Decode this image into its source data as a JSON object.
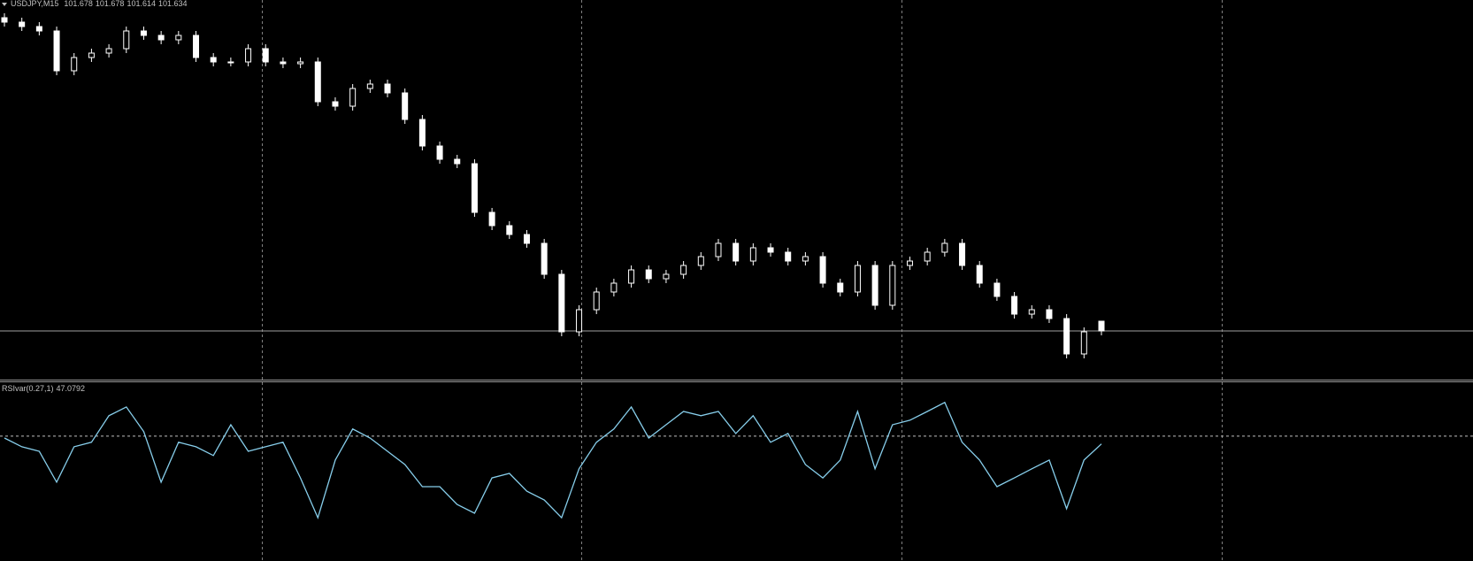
{
  "chart_data": [
    {
      "type": "candlestick",
      "title": "USDJPY,M15",
      "open": [
        103.05,
        103.03,
        103.01,
        102.99,
        102.81,
        102.87,
        102.89,
        102.91,
        102.99,
        102.97,
        102.95,
        102.97,
        102.87,
        102.85,
        102.85,
        102.91,
        102.85,
        102.842,
        102.85,
        102.67,
        102.65,
        102.73,
        102.75,
        102.71,
        102.59,
        102.47,
        102.41,
        102.39,
        102.17,
        102.11,
        102.07,
        102.03,
        101.89,
        101.63,
        101.73,
        101.81,
        101.85,
        101.91,
        101.87,
        101.89,
        101.93,
        101.97,
        102.03,
        101.95,
        102.01,
        101.99,
        101.95,
        101.97,
        101.85,
        101.81,
        101.93,
        101.75,
        101.93,
        101.95,
        101.99,
        102.03,
        101.93,
        101.85,
        101.79,
        101.71,
        101.73,
        101.69,
        101.53,
        101.678
      ],
      "high": [
        103.07,
        103.05,
        103.03,
        103.01,
        102.89,
        102.91,
        102.93,
        103.01,
        103.01,
        102.99,
        102.99,
        102.99,
        102.89,
        102.87,
        102.93,
        102.93,
        102.87,
        102.87,
        102.87,
        102.69,
        102.75,
        102.77,
        102.77,
        102.73,
        102.61,
        102.49,
        102.43,
        102.41,
        102.19,
        102.13,
        102.09,
        102.05,
        101.91,
        101.75,
        101.83,
        101.87,
        101.93,
        101.93,
        101.91,
        101.95,
        101.99,
        102.05,
        102.05,
        102.03,
        102.03,
        102.01,
        101.99,
        101.99,
        101.87,
        101.95,
        101.95,
        101.95,
        101.97,
        102.01,
        102.05,
        102.05,
        101.95,
        101.87,
        101.81,
        101.75,
        101.75,
        101.71,
        101.65,
        101.678
      ],
      "low": [
        103.01,
        102.99,
        102.97,
        102.79,
        102.79,
        102.85,
        102.87,
        102.89,
        102.95,
        102.93,
        102.93,
        102.85,
        102.83,
        102.83,
        102.83,
        102.83,
        102.822,
        102.822,
        102.65,
        102.63,
        102.63,
        102.71,
        102.69,
        102.57,
        102.45,
        102.39,
        102.37,
        102.15,
        102.09,
        102.05,
        102.01,
        101.87,
        101.61,
        101.61,
        101.71,
        101.79,
        101.83,
        101.85,
        101.85,
        101.87,
        101.91,
        101.95,
        101.93,
        101.93,
        101.97,
        101.93,
        101.93,
        101.83,
        101.79,
        101.79,
        101.73,
        101.73,
        101.91,
        101.93,
        101.97,
        101.91,
        101.83,
        101.77,
        101.69,
        101.69,
        101.67,
        101.51,
        101.51,
        101.614
      ],
      "close": [
        103.03,
        103.01,
        102.99,
        102.81,
        102.87,
        102.89,
        102.91,
        102.99,
        102.97,
        102.95,
        102.97,
        102.87,
        102.85,
        102.85,
        102.91,
        102.85,
        102.842,
        102.85,
        102.67,
        102.65,
        102.73,
        102.75,
        102.71,
        102.59,
        102.47,
        102.41,
        102.39,
        102.17,
        102.11,
        102.07,
        102.03,
        101.89,
        101.63,
        101.73,
        101.81,
        101.85,
        101.91,
        101.87,
        101.89,
        101.93,
        101.97,
        102.03,
        101.95,
        102.01,
        101.99,
        101.95,
        101.97,
        101.85,
        101.81,
        101.93,
        101.75,
        101.93,
        101.95,
        101.99,
        102.03,
        101.93,
        101.85,
        101.79,
        101.71,
        101.73,
        101.69,
        101.53,
        101.63,
        101.634
      ],
      "ylim": [
        101.418,
        103.13
      ],
      "color": "#ffffff",
      "grid": true
    },
    {
      "type": "line",
      "title": "RSIvar(0.27,1)",
      "values": [
        49.3,
        46.0,
        44.3,
        32.7,
        46.0,
        47.7,
        57.7,
        61.0,
        51.7,
        32.7,
        47.7,
        46.0,
        42.7,
        54.3,
        44.3,
        46.0,
        47.7,
        34.3,
        19.3,
        41.0,
        52.7,
        49.3,
        44.3,
        39.3,
        31.0,
        31.0,
        24.3,
        21.0,
        34.3,
        36.0,
        29.3,
        26.0,
        19.3,
        37.7,
        47.7,
        52.7,
        61.0,
        49.3,
        54.3,
        59.3,
        57.7,
        59.3,
        51.0,
        57.7,
        47.7,
        51.0,
        39.3,
        34.3,
        41.0,
        59.3,
        37.7,
        54.3,
        56.0,
        59.3,
        62.7,
        47.7,
        41.0,
        31.0,
        34.3,
        37.7,
        41.0,
        22.7,
        41.0,
        47.0792
      ],
      "levels": [
        50
      ],
      "ylim": [
        3,
        70.3
      ],
      "color": "#87ceeb",
      "grid": true
    }
  ]
}
